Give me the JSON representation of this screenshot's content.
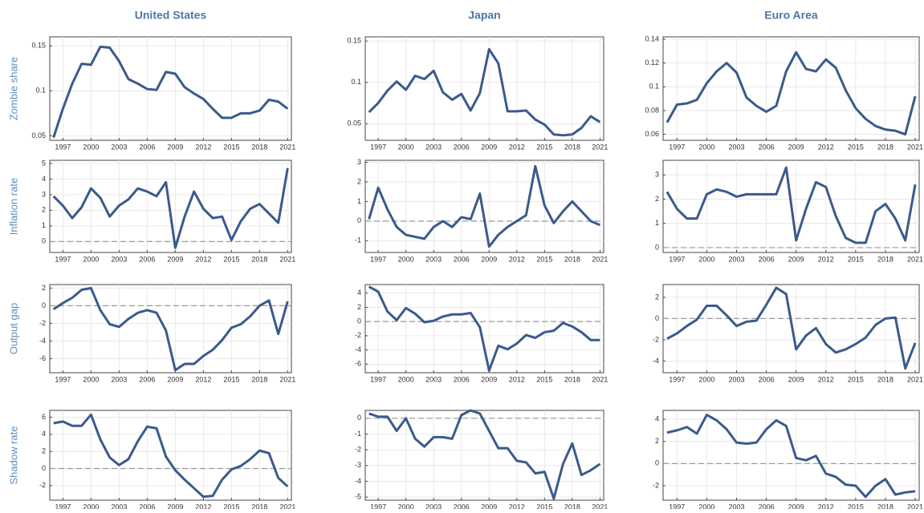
{
  "chart_data": [
    {
      "type": "line",
      "title": "United States",
      "ylabel": "Zombie share",
      "color": "#3b5a8c",
      "grid": true,
      "zero_line": false,
      "x": [
        1996,
        1997,
        1998,
        1999,
        2000,
        2001,
        2002,
        2003,
        2004,
        2005,
        2006,
        2007,
        2008,
        2009,
        2010,
        2011,
        2012,
        2013,
        2014,
        2015,
        2016,
        2017,
        2018,
        2019,
        2020,
        2021
      ],
      "values": [
        0.048,
        0.08,
        0.108,
        0.13,
        0.129,
        0.149,
        0.148,
        0.133,
        0.113,
        0.108,
        0.102,
        0.101,
        0.121,
        0.119,
        0.104,
        0.097,
        0.091,
        0.08,
        0.07,
        0.07,
        0.075,
        0.075,
        0.078,
        0.09,
        0.088,
        0.08
      ],
      "xlim": [
        1995.6,
        2021.4
      ],
      "xticks": [
        1997,
        2000,
        2003,
        2006,
        2009,
        2012,
        2015,
        2018,
        2021
      ],
      "ylim": [
        0.045,
        0.16
      ],
      "yticks": [
        0.05,
        0.1,
        0.15
      ]
    },
    {
      "type": "line",
      "title": "Japan",
      "color": "#3b5a8c",
      "grid": true,
      "zero_line": false,
      "x": [
        1996,
        1997,
        1998,
        1999,
        2000,
        2001,
        2002,
        2003,
        2004,
        2005,
        2006,
        2007,
        2008,
        2009,
        2010,
        2011,
        2012,
        2013,
        2014,
        2015,
        2016,
        2017,
        2018,
        2019,
        2020,
        2021
      ],
      "values": [
        0.064,
        0.075,
        0.09,
        0.101,
        0.091,
        0.108,
        0.104,
        0.114,
        0.088,
        0.079,
        0.086,
        0.066,
        0.087,
        0.14,
        0.123,
        0.065,
        0.065,
        0.066,
        0.055,
        0.049,
        0.037,
        0.036,
        0.037,
        0.045,
        0.059,
        0.052
      ],
      "xlim": [
        1995.6,
        2021.4
      ],
      "xticks": [
        1997,
        2000,
        2003,
        2006,
        2009,
        2012,
        2015,
        2018,
        2021
      ],
      "ylim": [
        0.03,
        0.155
      ],
      "yticks": [
        0.05,
        0.1,
        0.15
      ]
    },
    {
      "type": "line",
      "title": "Euro Area",
      "color": "#3b5a8c",
      "grid": true,
      "zero_line": false,
      "x": [
        1996,
        1997,
        1998,
        1999,
        2000,
        2001,
        2002,
        2003,
        2004,
        2005,
        2006,
        2007,
        2008,
        2009,
        2010,
        2011,
        2012,
        2013,
        2014,
        2015,
        2016,
        2017,
        2018,
        2019,
        2020,
        2021
      ],
      "values": [
        0.07,
        0.085,
        0.086,
        0.089,
        0.103,
        0.113,
        0.12,
        0.112,
        0.091,
        0.084,
        0.079,
        0.084,
        0.113,
        0.129,
        0.115,
        0.113,
        0.123,
        0.116,
        0.097,
        0.082,
        0.073,
        0.067,
        0.064,
        0.063,
        0.06,
        0.092
      ],
      "xlim": [
        1995.6,
        2021.4
      ],
      "xticks": [
        1997,
        2000,
        2003,
        2006,
        2009,
        2012,
        2015,
        2018,
        2021
      ],
      "ylim": [
        0.055,
        0.142
      ],
      "yticks": [
        0.06,
        0.08,
        0.1,
        0.12,
        0.14
      ]
    },
    {
      "type": "line",
      "ylabel": "Inflation rate",
      "color": "#3b5a8c",
      "grid": true,
      "zero_line": true,
      "x": [
        1996,
        1997,
        1998,
        1999,
        2000,
        2001,
        2002,
        2003,
        2004,
        2005,
        2006,
        2007,
        2008,
        2009,
        2010,
        2011,
        2012,
        2013,
        2014,
        2015,
        2016,
        2017,
        2018,
        2019,
        2020,
        2021
      ],
      "values": [
        2.9,
        2.3,
        1.5,
        2.2,
        3.4,
        2.8,
        1.6,
        2.3,
        2.7,
        3.4,
        3.2,
        2.9,
        3.8,
        -0.4,
        1.6,
        3.2,
        2.1,
        1.5,
        1.6,
        0.1,
        1.3,
        2.1,
        2.4,
        1.8,
        1.2,
        4.7
      ],
      "xlim": [
        1995.6,
        2021.4
      ],
      "xticks": [
        1997,
        2000,
        2003,
        2006,
        2009,
        2012,
        2015,
        2018,
        2021
      ],
      "ylim": [
        -0.7,
        5.2
      ],
      "yticks": [
        0,
        1,
        2,
        3,
        4,
        5
      ]
    },
    {
      "type": "line",
      "color": "#3b5a8c",
      "grid": true,
      "zero_line": true,
      "x": [
        1996,
        1997,
        1998,
        1999,
        2000,
        2001,
        2002,
        2003,
        2004,
        2005,
        2006,
        2007,
        2008,
        2009,
        2010,
        2011,
        2012,
        2013,
        2014,
        2015,
        2016,
        2017,
        2018,
        2019,
        2020,
        2021
      ],
      "values": [
        0.1,
        1.7,
        0.6,
        -0.3,
        -0.7,
        -0.8,
        -0.9,
        -0.3,
        0.0,
        -0.3,
        0.2,
        0.1,
        1.4,
        -1.3,
        -0.7,
        -0.3,
        0.0,
        0.3,
        2.8,
        0.8,
        -0.1,
        0.5,
        1.0,
        0.5,
        0.0,
        -0.2
      ],
      "xlim": [
        1995.6,
        2021.4
      ],
      "xticks": [
        1997,
        2000,
        2003,
        2006,
        2009,
        2012,
        2015,
        2018,
        2021
      ],
      "ylim": [
        -1.6,
        3.1
      ],
      "yticks": [
        -1,
        0,
        1,
        2,
        3
      ]
    },
    {
      "type": "line",
      "color": "#3b5a8c",
      "grid": true,
      "zero_line": true,
      "x": [
        1996,
        1997,
        1998,
        1999,
        2000,
        2001,
        2002,
        2003,
        2004,
        2005,
        2006,
        2007,
        2008,
        2009,
        2010,
        2011,
        2012,
        2013,
        2014,
        2015,
        2016,
        2017,
        2018,
        2019,
        2020,
        2021
      ],
      "values": [
        2.3,
        1.6,
        1.2,
        1.2,
        2.2,
        2.4,
        2.3,
        2.1,
        2.2,
        2.2,
        2.2,
        2.2,
        3.3,
        0.3,
        1.6,
        2.7,
        2.5,
        1.3,
        0.4,
        0.2,
        0.2,
        1.5,
        1.8,
        1.2,
        0.3,
        2.6
      ],
      "xlim": [
        1995.6,
        2021.4
      ],
      "xticks": [
        1997,
        2000,
        2003,
        2006,
        2009,
        2012,
        2015,
        2018,
        2021
      ],
      "ylim": [
        -0.2,
        3.6
      ],
      "yticks": [
        0,
        1,
        2,
        3
      ]
    },
    {
      "type": "line",
      "ylabel": "Output gap",
      "color": "#3b5a8c",
      "grid": true,
      "zero_line": true,
      "x": [
        1996,
        1997,
        1998,
        1999,
        2000,
        2001,
        2002,
        2003,
        2004,
        2005,
        2006,
        2007,
        2008,
        2009,
        2010,
        2011,
        2012,
        2013,
        2014,
        2015,
        2016,
        2017,
        2018,
        2019,
        2020,
        2021
      ],
      "values": [
        -0.4,
        0.3,
        0.9,
        1.8,
        2.0,
        -0.5,
        -2.1,
        -2.4,
        -1.5,
        -0.8,
        -0.5,
        -0.8,
        -2.8,
        -7.3,
        -6.6,
        -6.6,
        -5.7,
        -5.0,
        -3.9,
        -2.5,
        -2.1,
        -1.2,
        0.0,
        0.6,
        -3.2,
        0.5
      ],
      "xlim": [
        1995.6,
        2021.4
      ],
      "xticks": [
        1997,
        2000,
        2003,
        2006,
        2009,
        2012,
        2015,
        2018,
        2021
      ],
      "ylim": [
        -7.6,
        2.4
      ],
      "yticks": [
        -6,
        -4,
        -2,
        0,
        2
      ]
    },
    {
      "type": "line",
      "color": "#3b5a8c",
      "grid": true,
      "zero_line": true,
      "x": [
        1996,
        1997,
        1998,
        1999,
        2000,
        2001,
        2002,
        2003,
        2004,
        2005,
        2006,
        2007,
        2008,
        2009,
        2010,
        2011,
        2012,
        2013,
        2014,
        2015,
        2016,
        2017,
        2018,
        2019,
        2020,
        2021
      ],
      "values": [
        4.9,
        4.2,
        1.4,
        0.2,
        1.9,
        1.1,
        -0.1,
        0.1,
        0.7,
        1.0,
        1.0,
        1.2,
        -0.8,
        -6.9,
        -3.4,
        -3.9,
        -3.1,
        -1.9,
        -2.3,
        -1.5,
        -1.3,
        -0.2,
        -0.7,
        -1.5,
        -2.6,
        -2.6
      ],
      "xlim": [
        1995.6,
        2021.4
      ],
      "xticks": [
        1997,
        2000,
        2003,
        2006,
        2009,
        2012,
        2015,
        2018,
        2021
      ],
      "ylim": [
        -7.2,
        5.2
      ],
      "yticks": [
        -6,
        -4,
        -2,
        0,
        2,
        4
      ]
    },
    {
      "type": "line",
      "color": "#3b5a8c",
      "grid": true,
      "zero_line": true,
      "x": [
        1996,
        1997,
        1998,
        1999,
        2000,
        2001,
        2002,
        2003,
        2004,
        2005,
        2006,
        2007,
        2008,
        2009,
        2010,
        2011,
        2012,
        2013,
        2014,
        2015,
        2016,
        2017,
        2018,
        2019,
        2020,
        2021
      ],
      "values": [
        -1.9,
        -1.4,
        -0.7,
        -0.1,
        1.2,
        1.2,
        0.3,
        -0.7,
        -0.3,
        -0.2,
        1.3,
        2.9,
        2.3,
        -2.9,
        -1.6,
        -0.9,
        -2.4,
        -3.2,
        -2.9,
        -2.4,
        -1.8,
        -0.6,
        0.0,
        0.1,
        -4.7,
        -2.3
      ],
      "xlim": [
        1995.6,
        2021.4
      ],
      "xticks": [
        1997,
        2000,
        2003,
        2006,
        2009,
        2012,
        2015,
        2018,
        2021
      ],
      "ylim": [
        -5.1,
        3.2
      ],
      "yticks": [
        -4,
        -2,
        0,
        2
      ]
    },
    {
      "type": "line",
      "ylabel": "Shadow rate",
      "color": "#3b5a8c",
      "grid": true,
      "zero_line": true,
      "x": [
        1996,
        1997,
        1998,
        1999,
        2000,
        2001,
        2002,
        2003,
        2004,
        2005,
        2006,
        2007,
        2008,
        2009,
        2010,
        2011,
        2012,
        2013,
        2014,
        2015,
        2016,
        2017,
        2018,
        2019,
        2020,
        2021
      ],
      "values": [
        5.3,
        5.5,
        5.0,
        5.0,
        6.3,
        3.4,
        1.3,
        0.4,
        1.1,
        3.2,
        4.9,
        4.7,
        1.4,
        -0.2,
        -1.3,
        -2.3,
        -3.3,
        -3.2,
        -1.3,
        -0.1,
        0.3,
        1.1,
        2.1,
        1.8,
        -1.1,
        -2.1
      ],
      "xlim": [
        1995.6,
        2021.4
      ],
      "xticks": [
        1997,
        2000,
        2003,
        2006,
        2009,
        2012,
        2015,
        2018,
        2021
      ],
      "ylim": [
        -3.7,
        6.8
      ],
      "yticks": [
        -2,
        0,
        2,
        4,
        6
      ]
    },
    {
      "type": "line",
      "color": "#3b5a8c",
      "grid": true,
      "zero_line": true,
      "x": [
        1996,
        1997,
        1998,
        1999,
        2000,
        2001,
        2002,
        2003,
        2004,
        2005,
        2006,
        2007,
        2008,
        2009,
        2010,
        2011,
        2012,
        2013,
        2014,
        2015,
        2016,
        2017,
        2018,
        2019,
        2020,
        2021
      ],
      "values": [
        0.3,
        0.1,
        0.1,
        -0.8,
        0.0,
        -1.3,
        -1.8,
        -1.2,
        -1.2,
        -1.3,
        0.2,
        0.5,
        0.3,
        -0.8,
        -1.9,
        -1.9,
        -2.7,
        -2.8,
        -3.5,
        -3.4,
        -5.1,
        -2.9,
        -1.6,
        -3.6,
        -3.3,
        -2.9
      ],
      "xlim": [
        1995.6,
        2021.4
      ],
      "xticks": [
        1997,
        2000,
        2003,
        2006,
        2009,
        2012,
        2015,
        2018,
        2021
      ],
      "ylim": [
        -5.2,
        0.5
      ],
      "yticks": [
        -5,
        -4,
        -3,
        -2,
        -1,
        0
      ]
    },
    {
      "type": "line",
      "color": "#3b5a8c",
      "grid": true,
      "zero_line": true,
      "x": [
        1996,
        1997,
        1998,
        1999,
        2000,
        2001,
        2002,
        2003,
        2004,
        2005,
        2006,
        2007,
        2008,
        2009,
        2010,
        2011,
        2012,
        2013,
        2014,
        2015,
        2016,
        2017,
        2018,
        2019,
        2020,
        2021
      ],
      "values": [
        2.8,
        3.0,
        3.3,
        2.7,
        4.4,
        3.9,
        3.1,
        1.9,
        1.8,
        1.9,
        3.1,
        3.9,
        3.4,
        0.5,
        0.3,
        0.7,
        -0.9,
        -1.2,
        -1.9,
        -2.0,
        -3.0,
        -2.0,
        -1.4,
        -2.8,
        -2.6,
        -2.5
      ],
      "xlim": [
        1995.6,
        2021.4
      ],
      "xticks": [
        1997,
        2000,
        2003,
        2006,
        2009,
        2012,
        2015,
        2018,
        2021
      ],
      "ylim": [
        -3.3,
        4.8
      ],
      "yticks": [
        -2,
        0,
        2,
        4
      ]
    }
  ]
}
